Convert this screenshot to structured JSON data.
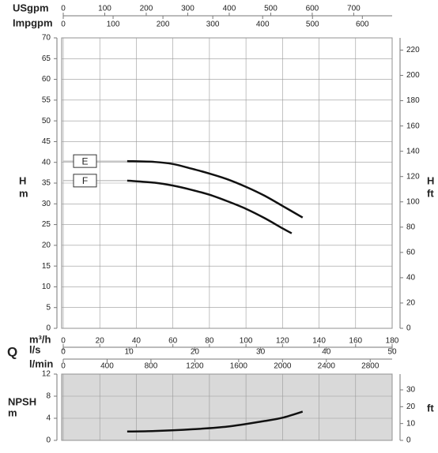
{
  "chart_data": [
    {
      "type": "line",
      "ylabel": "H",
      "yunit": "m",
      "y2label": "H",
      "y2unit": "ft",
      "ylim": [
        0,
        70
      ],
      "yticks": [
        0,
        5,
        10,
        15,
        20,
        25,
        30,
        35,
        40,
        45,
        50,
        55,
        60,
        65,
        70
      ],
      "y2lim": [
        0,
        229.66
      ],
      "y2ticks": [
        0,
        20,
        40,
        60,
        80,
        100,
        120,
        140,
        160,
        180,
        200,
        220
      ],
      "xlim": [
        0,
        180
      ],
      "grid": true,
      "flow_label": "Q",
      "top_axes": [
        {
          "label": "USgpm",
          "xlim": [
            0,
            792.6
          ],
          "xticks": [
            0,
            100,
            200,
            300,
            400,
            500,
            600,
            700
          ]
        },
        {
          "label": "Impgpm",
          "xlim": [
            0,
            659.8
          ],
          "xticks": [
            0,
            100,
            200,
            300,
            400,
            500,
            600
          ]
        }
      ],
      "bottom_axes": [
        {
          "label": "m³/h",
          "xlim": [
            0,
            180
          ],
          "xticks": [
            0,
            20,
            40,
            60,
            80,
            100,
            120,
            140,
            160,
            180
          ]
        },
        {
          "label": "l/s",
          "xlim": [
            0,
            50
          ],
          "xticks": [
            0,
            10,
            20,
            30,
            40,
            50
          ]
        },
        {
          "label": "l/min",
          "xlim": [
            0,
            3000
          ],
          "xticks": [
            0,
            400,
            800,
            1200,
            1600,
            2000,
            2400,
            2800
          ]
        }
      ],
      "series": [
        {
          "name": "E",
          "color": "#111111",
          "x": [
            35,
            50,
            60,
            70,
            80,
            90,
            100,
            110,
            120,
            131
          ],
          "values": [
            40.3,
            40.1,
            39.6,
            38.5,
            37.3,
            35.9,
            34.1,
            32.0,
            29.5,
            26.7
          ]
        },
        {
          "name": "F",
          "color": "#111111",
          "x": [
            35,
            50,
            60,
            70,
            80,
            90,
            100,
            110,
            120,
            125
          ],
          "values": [
            35.6,
            35.1,
            34.4,
            33.4,
            32.2,
            30.6,
            28.8,
            26.6,
            24.1,
            22.9
          ]
        }
      ]
    },
    {
      "type": "line",
      "ylabel": "NPSH",
      "yunit": "m",
      "y2unit": "ft",
      "ylim": [
        0,
        12
      ],
      "yticks": [
        0,
        4,
        8,
        12
      ],
      "y2lim": [
        0,
        39.37
      ],
      "y2ticks": [
        0,
        10,
        20,
        30
      ],
      "xlim": [
        0,
        180
      ],
      "grid": true,
      "background": "#d9d9d9",
      "series": [
        {
          "color": "#111111",
          "x": [
            35,
            50,
            70,
            90,
            110,
            120,
            131
          ],
          "values": [
            1.6,
            1.7,
            2.0,
            2.5,
            3.5,
            4.1,
            5.2
          ]
        }
      ]
    }
  ]
}
